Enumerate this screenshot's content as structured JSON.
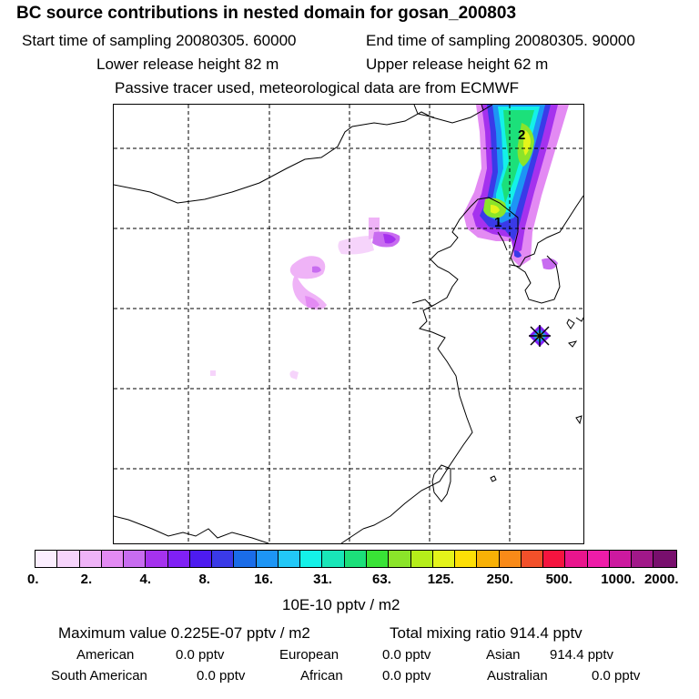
{
  "header": {
    "title": "BC  source contributions in nested domain for gosan_200803",
    "start_label": "Start time of sampling 20080305. 60000",
    "end_label": "End time of sampling 20080305. 90000",
    "lower_label": "Lower release height   82 m",
    "upper_label": "Upper release height   62 m",
    "tracer_note": "Passive tracer used, meteorological data are from ECMWF"
  },
  "map": {
    "markers": [
      {
        "label": "1"
      },
      {
        "label": "2"
      }
    ],
    "receptor": "star-marker"
  },
  "colorbar": {
    "colors": [
      "#fbeefe",
      "#f6d4fb",
      "#efb3f7",
      "#e38af3",
      "#c86cf0",
      "#a532ee",
      "#8020f5",
      "#4d1bf0",
      "#3a3ae8",
      "#1a6ce8",
      "#1d95f5",
      "#22c8f7",
      "#14f1e8",
      "#19e6b8",
      "#1ce07a",
      "#39e336",
      "#8be42a",
      "#b5ee1a",
      "#e4f41a",
      "#fddf06",
      "#f8b106",
      "#f98a18",
      "#f2502a",
      "#f5143f",
      "#e9158d",
      "#ee1ca8",
      "#cc199f",
      "#a11889",
      "#780f6d"
    ],
    "tick_labels": [
      "0.",
      "2.",
      "4.",
      "8.",
      "16.",
      "31.",
      "63.",
      "125.",
      "250.",
      "500.",
      "1000.",
      "2000."
    ],
    "units": "10E-10 pptv / m2"
  },
  "stats": {
    "max_value": "Maximum value  0.225E-07 pptv / m2",
    "total_mixing": "Total mixing ratio      914.4 pptv",
    "american_label": "American",
    "american_value": "0.0 pptv",
    "european_label": "European",
    "european_value": "0.0 pptv",
    "asian_label": "Asian",
    "asian_value": "914.4 pptv",
    "south_american_label": "South American",
    "south_american_value": "0.0 pptv",
    "african_label": "African",
    "african_value": "0.0 pptv",
    "australian_label": "Australian",
    "australian_value": "0.0 pptv"
  }
}
